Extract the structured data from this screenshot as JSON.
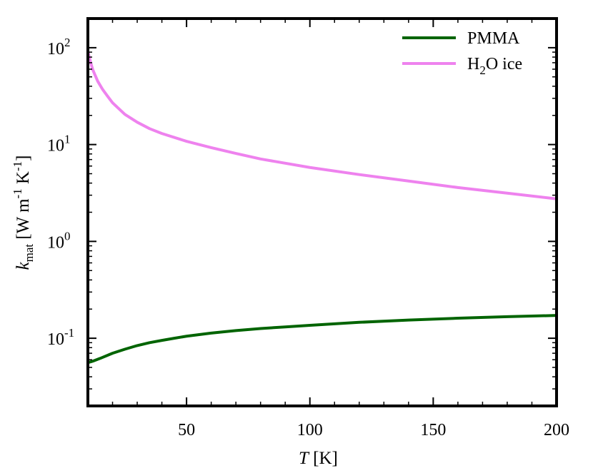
{
  "chart_data": {
    "type": "line",
    "xlabel": {
      "var": "T",
      "unit": " [K]"
    },
    "ylabel": {
      "var": "k",
      "sub": "mat",
      "unit_prefix": " [W m",
      "exp1": "-1",
      "mid": " K",
      "exp2": "-1",
      "unit_suffix": "]"
    },
    "xlim": [
      10,
      200
    ],
    "ylim": [
      0.02,
      200
    ],
    "yscale": "log",
    "legend_position": "top-right",
    "x_ticks": [
      "50",
      "100",
      "150",
      "200"
    ],
    "y_ticks": [
      {
        "base": "10",
        "exp": "2"
      },
      {
        "base": "10",
        "exp": "1"
      },
      {
        "base": "10",
        "exp": "0"
      },
      {
        "base": "10",
        "exp": "-1"
      }
    ],
    "series": [
      {
        "name": "PMMA",
        "color": "#006400",
        "x": [
          10,
          12,
          15,
          20,
          25,
          30,
          35,
          40,
          45,
          50,
          60,
          70,
          80,
          90,
          100,
          120,
          140,
          160,
          180,
          200
        ],
        "y": [
          0.056,
          0.058,
          0.062,
          0.07,
          0.077,
          0.084,
          0.09,
          0.095,
          0.1,
          0.105,
          0.113,
          0.12,
          0.126,
          0.131,
          0.136,
          0.146,
          0.154,
          0.161,
          0.167,
          0.172
        ]
      },
      {
        "name": "H2O ice",
        "label": {
          "main": "H",
          "sub": "2",
          "rest": "O ice"
        },
        "color": "#ee82ee",
        "x": [
          10,
          11,
          12,
          14,
          16,
          18,
          20,
          25,
          30,
          35,
          40,
          50,
          60,
          70,
          80,
          100,
          120,
          140,
          160,
          180,
          200
        ],
        "y": [
          92,
          72,
          59,
          45,
          37,
          31.5,
          27,
          20.5,
          17,
          14.6,
          13,
          10.8,
          9.3,
          8.1,
          7.1,
          5.8,
          4.9,
          4.2,
          3.6,
          3.15,
          2.75
        ]
      }
    ]
  }
}
